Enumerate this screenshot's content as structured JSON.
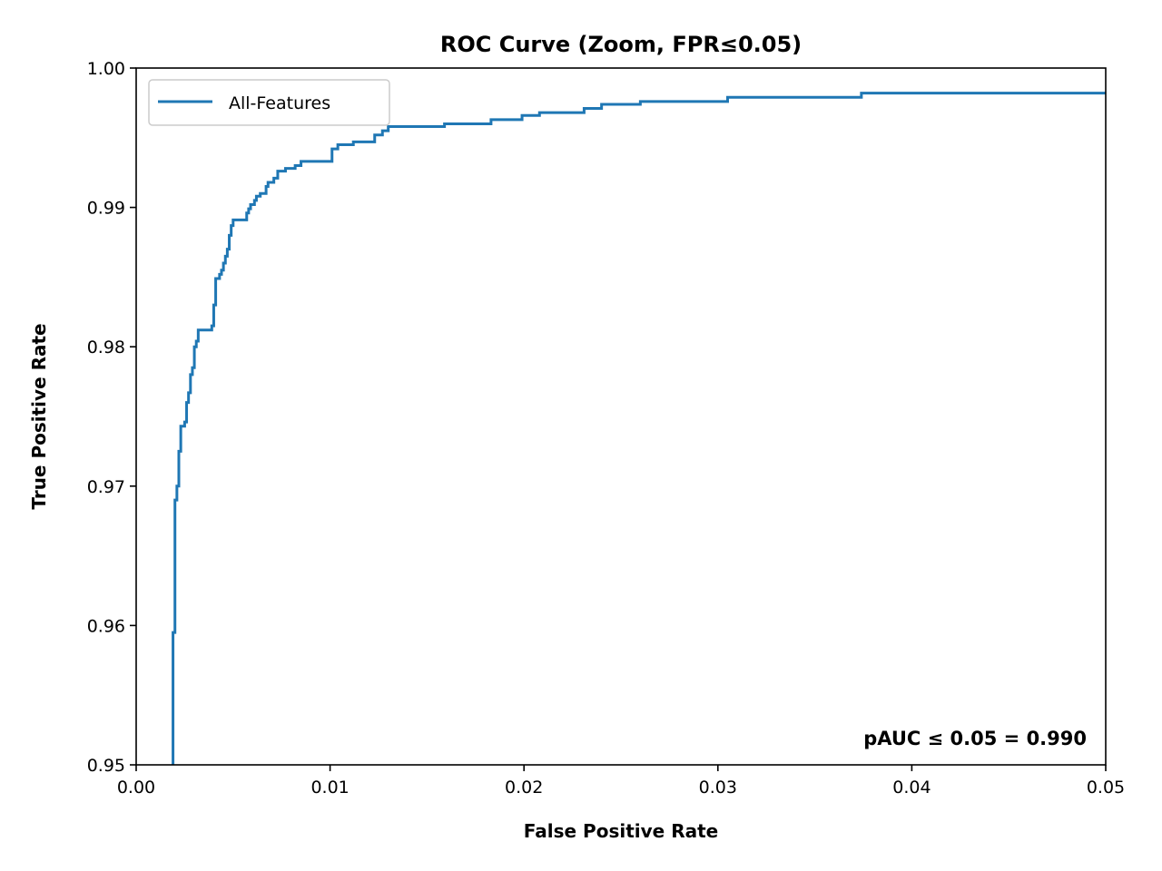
{
  "chart_data": {
    "type": "line",
    "title": "ROC Curve (Zoom, FPR≤0.05)",
    "xlabel": "False Positive Rate",
    "ylabel": "True Positive Rate",
    "xlim": [
      0.0,
      0.05
    ],
    "ylim": [
      0.95,
      1.0
    ],
    "x_ticks": [
      "0.00",
      "0.01",
      "0.02",
      "0.03",
      "0.04",
      "0.05"
    ],
    "y_ticks": [
      "0.95",
      "0.96",
      "0.97",
      "0.98",
      "0.99",
      "1.00"
    ],
    "grid": false,
    "legend_position": "top-left",
    "annotation": "pAUC ≤ 0.05 = 0.990",
    "series": [
      {
        "name": "All-Features",
        "color": "#1f77b4",
        "points": [
          [
            0.0019,
            0.95
          ],
          [
            0.0019,
            0.9595
          ],
          [
            0.002,
            0.9595
          ],
          [
            0.002,
            0.969
          ],
          [
            0.0021,
            0.969
          ],
          [
            0.0021,
            0.97
          ],
          [
            0.0022,
            0.97
          ],
          [
            0.0022,
            0.9725
          ],
          [
            0.0023,
            0.9725
          ],
          [
            0.0023,
            0.9743
          ],
          [
            0.0025,
            0.9743
          ],
          [
            0.0025,
            0.9746
          ],
          [
            0.0026,
            0.9746
          ],
          [
            0.0026,
            0.976
          ],
          [
            0.0027,
            0.976
          ],
          [
            0.0027,
            0.9767
          ],
          [
            0.0028,
            0.9767
          ],
          [
            0.0028,
            0.978
          ],
          [
            0.0029,
            0.978
          ],
          [
            0.0029,
            0.9785
          ],
          [
            0.003,
            0.9785
          ],
          [
            0.003,
            0.98
          ],
          [
            0.0031,
            0.98
          ],
          [
            0.0031,
            0.9804
          ],
          [
            0.0032,
            0.9804
          ],
          [
            0.0032,
            0.9812
          ],
          [
            0.0039,
            0.9812
          ],
          [
            0.0039,
            0.9815
          ],
          [
            0.004,
            0.9815
          ],
          [
            0.004,
            0.9818
          ],
          [
            0.004,
            0.9818
          ],
          [
            0.004,
            0.983
          ],
          [
            0.0041,
            0.983
          ],
          [
            0.0041,
            0.9849
          ],
          [
            0.0043,
            0.9849
          ],
          [
            0.0043,
            0.9852
          ],
          [
            0.0044,
            0.9852
          ],
          [
            0.0044,
            0.9855
          ],
          [
            0.0045,
            0.9855
          ],
          [
            0.0045,
            0.986
          ],
          [
            0.0046,
            0.986
          ],
          [
            0.0046,
            0.9865
          ],
          [
            0.0047,
            0.9865
          ],
          [
            0.0047,
            0.987
          ],
          [
            0.0048,
            0.987
          ],
          [
            0.0048,
            0.988
          ],
          [
            0.0049,
            0.988
          ],
          [
            0.0049,
            0.9887
          ],
          [
            0.005,
            0.9887
          ],
          [
            0.005,
            0.9891
          ],
          [
            0.0057,
            0.9891
          ],
          [
            0.0057,
            0.9896
          ],
          [
            0.0058,
            0.9896
          ],
          [
            0.0058,
            0.9899
          ],
          [
            0.0059,
            0.9899
          ],
          [
            0.0059,
            0.9902
          ],
          [
            0.0061,
            0.9902
          ],
          [
            0.0061,
            0.9905
          ],
          [
            0.0062,
            0.9905
          ],
          [
            0.0062,
            0.9908
          ],
          [
            0.0064,
            0.9908
          ],
          [
            0.0064,
            0.991
          ],
          [
            0.0067,
            0.991
          ],
          [
            0.0067,
            0.9915
          ],
          [
            0.0068,
            0.9915
          ],
          [
            0.0068,
            0.9918
          ],
          [
            0.0071,
            0.9918
          ],
          [
            0.0071,
            0.9921
          ],
          [
            0.0073,
            0.9921
          ],
          [
            0.0073,
            0.9926
          ],
          [
            0.0077,
            0.9926
          ],
          [
            0.0077,
            0.9928
          ],
          [
            0.0082,
            0.9928
          ],
          [
            0.0082,
            0.993
          ],
          [
            0.0085,
            0.993
          ],
          [
            0.0085,
            0.9933
          ],
          [
            0.0101,
            0.9933
          ],
          [
            0.0101,
            0.9942
          ],
          [
            0.0104,
            0.9942
          ],
          [
            0.0104,
            0.9945
          ],
          [
            0.0112,
            0.9945
          ],
          [
            0.0112,
            0.9947
          ],
          [
            0.0123,
            0.9947
          ],
          [
            0.0123,
            0.9952
          ],
          [
            0.0127,
            0.9952
          ],
          [
            0.0127,
            0.9955
          ],
          [
            0.013,
            0.9955
          ],
          [
            0.013,
            0.9958
          ],
          [
            0.0159,
            0.9958
          ],
          [
            0.0159,
            0.996
          ],
          [
            0.0183,
            0.996
          ],
          [
            0.0183,
            0.9963
          ],
          [
            0.0199,
            0.9963
          ],
          [
            0.0199,
            0.9966
          ],
          [
            0.0208,
            0.9966
          ],
          [
            0.0208,
            0.9968
          ],
          [
            0.0231,
            0.9968
          ],
          [
            0.0231,
            0.9971
          ],
          [
            0.024,
            0.9971
          ],
          [
            0.024,
            0.9974
          ],
          [
            0.026,
            0.9974
          ],
          [
            0.026,
            0.9976
          ],
          [
            0.0305,
            0.9976
          ],
          [
            0.0305,
            0.9979
          ],
          [
            0.0374,
            0.9979
          ],
          [
            0.0374,
            0.9982
          ],
          [
            0.05,
            0.9982
          ]
        ]
      }
    ]
  }
}
